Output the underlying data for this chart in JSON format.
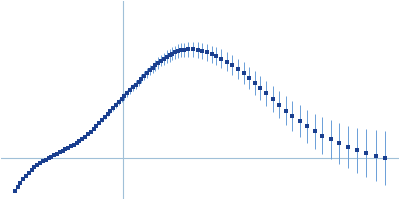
{
  "dot_color": "#1a3f8f",
  "error_color": "#6a9fd8",
  "background_color": "#ffffff",
  "axis_color": "#a0c0d8",
  "figsize": [
    4.0,
    2.0
  ],
  "dpi": 100,
  "xlim": [
    -0.005,
    0.42
  ],
  "ylim": [
    -0.0085,
    0.032
  ],
  "zero_line_y": 0.0,
  "zero_line_x": 0.125,
  "q_values": [
    0.01,
    0.013,
    0.016,
    0.019,
    0.022,
    0.025,
    0.028,
    0.031,
    0.034,
    0.037,
    0.04,
    0.043,
    0.046,
    0.049,
    0.052,
    0.055,
    0.058,
    0.061,
    0.064,
    0.067,
    0.07,
    0.073,
    0.076,
    0.079,
    0.082,
    0.085,
    0.088,
    0.091,
    0.094,
    0.097,
    0.1,
    0.103,
    0.106,
    0.109,
    0.112,
    0.115,
    0.118,
    0.121,
    0.124,
    0.127,
    0.13,
    0.133,
    0.136,
    0.139,
    0.142,
    0.145,
    0.148,
    0.151,
    0.154,
    0.157,
    0.16,
    0.163,
    0.166,
    0.169,
    0.172,
    0.175,
    0.178,
    0.181,
    0.184,
    0.187,
    0.19,
    0.195,
    0.2,
    0.205,
    0.21,
    0.215,
    0.22,
    0.225,
    0.23,
    0.236,
    0.242,
    0.248,
    0.254,
    0.26,
    0.266,
    0.272,
    0.278,
    0.285,
    0.292,
    0.299,
    0.306,
    0.314,
    0.322,
    0.33,
    0.338,
    0.347,
    0.356,
    0.365,
    0.375,
    0.385,
    0.395,
    0.405
  ],
  "kratky_y": [
    -0.0068,
    -0.006,
    -0.0052,
    -0.0044,
    -0.0037,
    -0.0031,
    -0.0025,
    -0.002,
    -0.0015,
    -0.0011,
    -0.0007,
    -0.0004,
    -0.0001,
    0.0002,
    0.0005,
    0.0008,
    0.0011,
    0.0014,
    0.0017,
    0.002,
    0.0023,
    0.0026,
    0.003,
    0.0034,
    0.0038,
    0.0043,
    0.0048,
    0.0053,
    0.0059,
    0.0065,
    0.0071,
    0.0077,
    0.0083,
    0.0089,
    0.0095,
    0.0101,
    0.0107,
    0.0113,
    0.0119,
    0.0125,
    0.0131,
    0.0137,
    0.0143,
    0.0149,
    0.0155,
    0.0161,
    0.0167,
    0.0173,
    0.0178,
    0.0183,
    0.0188,
    0.0193,
    0.0198,
    0.0202,
    0.0206,
    0.0209,
    0.0212,
    0.0215,
    0.0217,
    0.0219,
    0.022,
    0.0221,
    0.0221,
    0.022,
    0.0218,
    0.0215,
    0.0211,
    0.0207,
    0.0202,
    0.0196,
    0.0189,
    0.0181,
    0.0172,
    0.0162,
    0.0152,
    0.0142,
    0.0131,
    0.012,
    0.0108,
    0.0096,
    0.0085,
    0.0074,
    0.0064,
    0.0054,
    0.0045,
    0.0037,
    0.0029,
    0.0022,
    0.0015,
    0.0009,
    0.0004,
    -0.0001
  ],
  "errors": [
    0.0002,
    0.0002,
    0.0002,
    0.00018,
    0.00016,
    0.00015,
    0.00014,
    0.00013,
    0.00012,
    0.00011,
    0.00011,
    0.0001,
    0.0001,
    0.0001,
    0.0001,
    0.0001,
    0.00011,
    0.00011,
    0.00012,
    0.00013,
    0.00014,
    0.00015,
    0.00016,
    0.00017,
    0.00019,
    0.00021,
    0.00023,
    0.00025,
    0.00028,
    0.00031,
    0.00034,
    0.00037,
    0.0004,
    0.00043,
    0.00047,
    0.00051,
    0.00055,
    0.00059,
    0.00063,
    0.00067,
    0.00071,
    0.00075,
    0.00079,
    0.00083,
    0.00087,
    0.00091,
    0.00095,
    0.00099,
    0.00103,
    0.00107,
    0.00111,
    0.00115,
    0.00119,
    0.00123,
    0.00127,
    0.0013,
    0.00133,
    0.00136,
    0.00139,
    0.00142,
    0.00145,
    0.0015,
    0.00155,
    0.0016,
    0.00165,
    0.0017,
    0.00175,
    0.0018,
    0.00185,
    0.0019,
    0.002,
    0.0021,
    0.0022,
    0.0023,
    0.0024,
    0.0025,
    0.0026,
    0.0027,
    0.0028,
    0.00295,
    0.0031,
    0.00325,
    0.0034,
    0.00355,
    0.0037,
    0.0039,
    0.0041,
    0.0043,
    0.0046,
    0.0049,
    0.0052,
    0.0055
  ]
}
